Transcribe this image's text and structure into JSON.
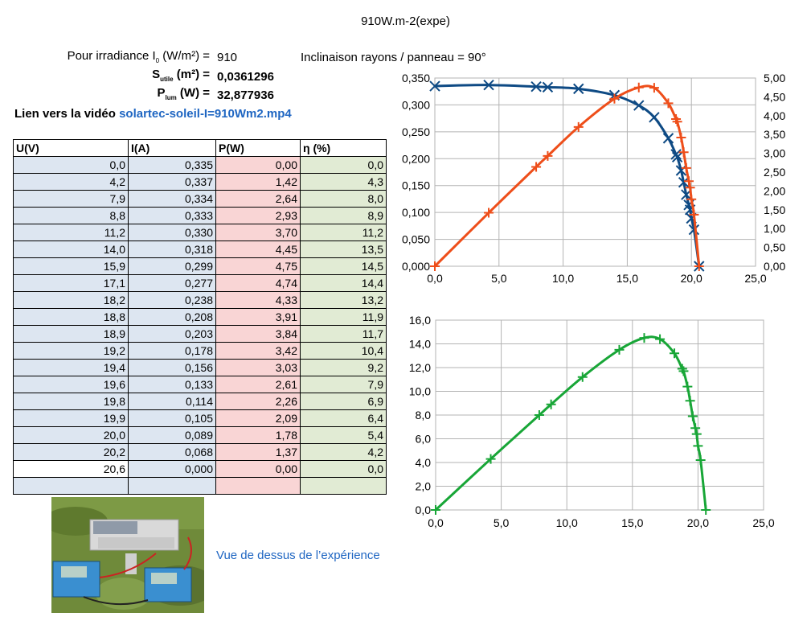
{
  "title": "910W.m-2(expe)",
  "info": {
    "irradiance_label_pre": "Pour irradiance I",
    "irradiance_label_sub": "0",
    "irradiance_label_post": " (W/m²) =",
    "irradiance_value": "910",
    "surface_label": "S",
    "surface_sub": "utile",
    "surface_post": " (m²) =",
    "surface_value": "0,0361296",
    "plum_label": "P",
    "plum_sub": "lum",
    "plum_post": " (W) =",
    "plum_value": "32,877936",
    "inclinaison": "Inclinaison rayons / panneau = 90°",
    "video_prefix": "Lien vers la vidéo ",
    "video_link": "solartec-soleil-I=910Wm2.mp4",
    "photo_caption": "Vue de dessus de l’expérience"
  },
  "table": {
    "headers": [
      "U(V)",
      "I(A)",
      "P(W)",
      "η (%)"
    ],
    "rows": [
      [
        "0,0",
        "0,335",
        "0,00",
        "0,0"
      ],
      [
        "4,2",
        "0,337",
        "1,42",
        "4,3"
      ],
      [
        "7,9",
        "0,334",
        "2,64",
        "8,0"
      ],
      [
        "8,8",
        "0,333",
        "2,93",
        "8,9"
      ],
      [
        "11,2",
        "0,330",
        "3,70",
        "11,2"
      ],
      [
        "14,0",
        "0,318",
        "4,45",
        "13,5"
      ],
      [
        "15,9",
        "0,299",
        "4,75",
        "14,5"
      ],
      [
        "17,1",
        "0,277",
        "4,74",
        "14,4"
      ],
      [
        "18,2",
        "0,238",
        "4,33",
        "13,2"
      ],
      [
        "18,8",
        "0,208",
        "3,91",
        "11,9"
      ],
      [
        "18,9",
        "0,203",
        "3,84",
        "11,7"
      ],
      [
        "19,2",
        "0,178",
        "3,42",
        "10,4"
      ],
      [
        "19,4",
        "0,156",
        "3,03",
        "9,2"
      ],
      [
        "19,6",
        "0,133",
        "2,61",
        "7,9"
      ],
      [
        "19,8",
        "0,114",
        "2,26",
        "6,9"
      ],
      [
        "19,9",
        "0,105",
        "2,09",
        "6,4"
      ],
      [
        "20,0",
        "0,089",
        "1,78",
        "5,4"
      ],
      [
        "20,2",
        "0,068",
        "1,37",
        "4,2"
      ],
      [
        "20,6",
        "0,000",
        "0,00",
        "0,0"
      ],
      [
        "",
        "",
        "",
        ""
      ]
    ]
  },
  "chart_data": [
    {
      "type": "scatter",
      "title": "",
      "xlim": [
        0,
        25
      ],
      "ylim_left": [
        0,
        0.35
      ],
      "ylim_right": [
        0,
        5
      ],
      "x_ticks": [
        "0,0",
        "5,0",
        "10,0",
        "15,0",
        "20,0",
        "25,0"
      ],
      "y_left_ticks": [
        "0,000",
        "0,050",
        "0,100",
        "0,150",
        "0,200",
        "0,250",
        "0,300",
        "0,350"
      ],
      "y_right_ticks": [
        "0,00",
        "0,50",
        "1,00",
        "1,50",
        "2,00",
        "2,50",
        "3,00",
        "3,50",
        "4,00",
        "4,50",
        "5,00"
      ],
      "grid": true,
      "series": [
        {
          "axis": "left",
          "color": "#0e4a84",
          "marker": "x",
          "x": [
            0.0,
            4.2,
            7.9,
            8.8,
            11.2,
            14.0,
            15.9,
            17.1,
            18.2,
            18.8,
            18.9,
            19.2,
            19.4,
            19.6,
            19.8,
            19.9,
            20.0,
            20.2,
            20.6
          ],
          "y": [
            0.335,
            0.337,
            0.334,
            0.333,
            0.33,
            0.318,
            0.299,
            0.277,
            0.238,
            0.208,
            0.203,
            0.178,
            0.156,
            0.133,
            0.114,
            0.105,
            0.089,
            0.068,
            0.0
          ]
        },
        {
          "axis": "right",
          "color": "#ee4e1a",
          "marker": "+",
          "x": [
            0.0,
            4.2,
            7.9,
            8.8,
            11.2,
            14.0,
            15.9,
            17.1,
            18.2,
            18.8,
            18.9,
            19.2,
            19.4,
            19.6,
            19.8,
            19.9,
            20.0,
            20.2,
            20.6
          ],
          "y": [
            0.0,
            1.42,
            2.64,
            2.93,
            3.7,
            4.45,
            4.75,
            4.74,
            4.33,
            3.91,
            3.84,
            3.42,
            3.03,
            2.61,
            2.26,
            2.09,
            1.78,
            1.37,
            0.0
          ]
        }
      ]
    },
    {
      "type": "scatter",
      "title": "",
      "xlim": [
        0,
        25
      ],
      "ylim": [
        0,
        16
      ],
      "x_ticks": [
        "0,0",
        "5,0",
        "10,0",
        "15,0",
        "20,0",
        "25,0"
      ],
      "y_ticks": [
        "0,0",
        "2,0",
        "4,0",
        "6,0",
        "8,0",
        "10,0",
        "12,0",
        "14,0",
        "16,0"
      ],
      "grid": true,
      "series": [
        {
          "color": "#18a637",
          "marker": "+",
          "x": [
            0.0,
            4.2,
            7.9,
            8.8,
            11.2,
            14.0,
            15.9,
            17.1,
            18.2,
            18.8,
            18.9,
            19.2,
            19.4,
            19.6,
            19.8,
            19.9,
            20.0,
            20.2,
            20.6
          ],
          "y": [
            0.0,
            4.3,
            8.0,
            8.9,
            11.2,
            13.5,
            14.5,
            14.4,
            13.2,
            11.9,
            11.7,
            10.4,
            9.2,
            7.9,
            6.9,
            6.4,
            5.4,
            4.2,
            0.0
          ]
        }
      ]
    }
  ]
}
